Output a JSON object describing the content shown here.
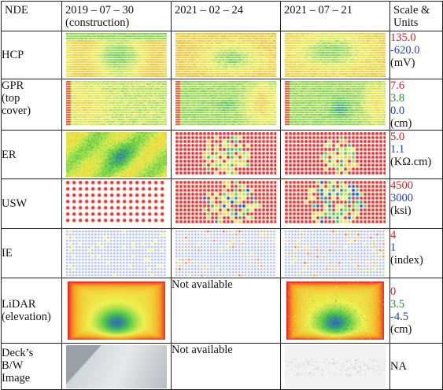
{
  "header": {
    "nde": "NDE",
    "date1": "2019 – 07 – 30",
    "date1_sub": "(construction)",
    "date2": "2021 – 02 – 24",
    "date3": "2021 – 07 – 21",
    "scale_l1": "Scale &",
    "scale_l2": "Units"
  },
  "rows": [
    {
      "label_lines": [
        "HCP"
      ],
      "scale": [
        {
          "text": "135.0",
          "color": "r"
        },
        {
          "text": "-620.0",
          "color": "b"
        },
        {
          "text": "(mV)",
          "color": "k"
        }
      ]
    },
    {
      "label_lines": [
        "GPR",
        "(top",
        "cover)"
      ],
      "scale": [
        {
          "text": "7.6",
          "color": "r"
        },
        {
          "text": "3.8",
          "color": "g"
        },
        {
          "text": "0.0",
          "color": "b"
        },
        {
          "text": "(cm)",
          "color": "k"
        }
      ]
    },
    {
      "label_lines": [
        "ER"
      ],
      "scale": [
        {
          "text": "5.0",
          "color": "r"
        },
        {
          "text": "1.1",
          "color": "b"
        },
        {
          "text": "(KΩ.cm)",
          "color": "k"
        }
      ]
    },
    {
      "label_lines": [
        "USW"
      ],
      "scale": [
        {
          "text": "4500",
          "color": "r"
        },
        {
          "text": "3000",
          "color": "b"
        },
        {
          "text": "(ksi)",
          "color": "k"
        }
      ]
    },
    {
      "label_lines": [
        "IE"
      ],
      "scale": [
        {
          "text": "4",
          "color": "r"
        },
        {
          "text": "1",
          "color": "b"
        },
        {
          "text": "(index)",
          "color": "k"
        }
      ]
    },
    {
      "label_lines": [
        "LiDAR",
        "(elevation)"
      ],
      "not_available": "Not available",
      "scale": [
        {
          "text": "0",
          "color": "r"
        },
        {
          "text": "3.5",
          "color": "g"
        },
        {
          "text": "-4.5",
          "color": "b"
        },
        {
          "text": "(cm)",
          "color": "k"
        }
      ]
    },
    {
      "label_lines": [
        "Deck’s",
        "B/W",
        "Image"
      ],
      "not_available": "Not available",
      "scale": [
        {
          "text": "NA",
          "color": "k"
        }
      ]
    }
  ],
  "colors": {
    "red": "#e8202a",
    "orange": "#f7a020",
    "yellow": "#eef050",
    "green": "#4cc84a",
    "blue": "#2040e8",
    "lightblue": "#a8b8f0"
  }
}
